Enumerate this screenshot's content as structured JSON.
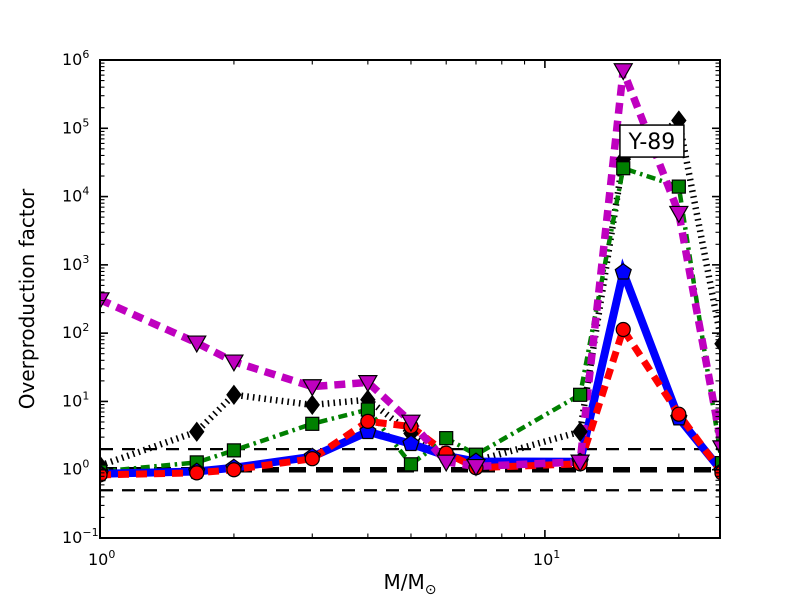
{
  "figure": {
    "background": "#ffffff"
  },
  "axes": {
    "ylabel": "Overproduction factor",
    "xlabel_main": "M/M",
    "xlabel_sub": "⊙",
    "x_scale": "log",
    "y_scale": "log"
  },
  "ticks": {
    "x_major_exponents": [
      0,
      1
    ],
    "x_minor_values": [
      2,
      3,
      4,
      5,
      6,
      7,
      8,
      9,
      20
    ],
    "y_major_exponents": [
      -1,
      0,
      1,
      2,
      3,
      4,
      5,
      6
    ]
  },
  "chart_data": {
    "type": "line",
    "title": "",
    "xlabel": "M/M_sun (solar masses)",
    "ylabel": "Overproduction factor",
    "x_scale": "log",
    "y_scale": "log",
    "xlim": [
      1,
      24.75
    ],
    "ylim": [
      0.1,
      1000000
    ],
    "grid": false,
    "legend": "none",
    "x": [
      1,
      1.65,
      2,
      3,
      4,
      5,
      6,
      7,
      12,
      15,
      20,
      25
    ],
    "series": [
      {
        "name": "black-dotted-diamond",
        "color": "#000000",
        "linestyle": "dotted",
        "linewidth": 6.5,
        "marker": "diamond",
        "values": [
          1.15,
          3.6,
          12.5,
          8.9,
          10.6,
          3.4,
          1.55,
          1.35,
          3.6,
          35000,
          130000,
          70
        ]
      },
      {
        "name": "green-dashdot-square",
        "color": "#008000",
        "linestyle": "dashdot",
        "linewidth": 4.5,
        "marker": "square",
        "values": [
          0.94,
          1.28,
          1.92,
          4.7,
          7.6,
          1.2,
          2.9,
          1.66,
          12.5,
          26000,
          14000,
          1.25
        ]
      },
      {
        "name": "blue-solid-pentagon",
        "color": "#0000ff",
        "linestyle": "solid",
        "linewidth": 8,
        "marker": "pentagon",
        "values": [
          0.87,
          0.94,
          1.07,
          1.55,
          3.6,
          2.4,
          1.6,
          1.32,
          1.31,
          780,
          5.7,
          0.95
        ]
      },
      {
        "name": "red-dashed-circle",
        "color": "#ff0000",
        "linestyle": "dashed",
        "linewidth": 7,
        "marker": "circle",
        "values": [
          0.84,
          0.9,
          1.0,
          1.45,
          5.1,
          4.3,
          1.75,
          1.07,
          1.22,
          113,
          6.5,
          0.9
        ]
      },
      {
        "name": "magenta-dashed-triangle",
        "color": "#bf00bf",
        "linestyle": "dashed",
        "linewidth": 7.5,
        "marker": "triangle-down",
        "values": [
          310,
          72,
          38,
          16.5,
          19,
          5.0,
          1.3,
          1.12,
          1.3,
          700000,
          5700,
          2.1
        ]
      }
    ],
    "reference_lines": [
      {
        "y": 2,
        "color": "#000000",
        "style": "dashed",
        "linewidth": 2.2,
        "thick": false
      },
      {
        "y": 1,
        "color": "#000000",
        "style": "dashed",
        "linewidth": 5.5,
        "thick": true
      },
      {
        "y": 0.5,
        "color": "#000000",
        "style": "dashed",
        "linewidth": 2.2,
        "thick": false
      }
    ],
    "annotation": {
      "text": "Y-89",
      "x": 17.4,
      "y": 65000
    }
  }
}
